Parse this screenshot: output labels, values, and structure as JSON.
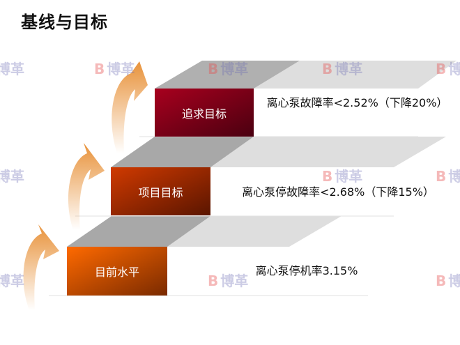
{
  "title": "基线与目标",
  "watermark": {
    "logo_mark": "B",
    "text": "博革"
  },
  "steps": [
    {
      "label": "目前水平",
      "description": "离心泵停机率3.15%",
      "color": "#e05a00"
    },
    {
      "label": "项目目标",
      "description": "离心泵停故障率<2.68%（下降15%）",
      "color": "#b83200"
    },
    {
      "label": "追求目标",
      "description": "离心泵故障率<2.52%（下降20%）",
      "color": "#9a0a20"
    }
  ],
  "colors": {
    "arrow": "#e89a4a",
    "plane_dark": "#a8a8a8",
    "plane_light": "#dedede"
  }
}
